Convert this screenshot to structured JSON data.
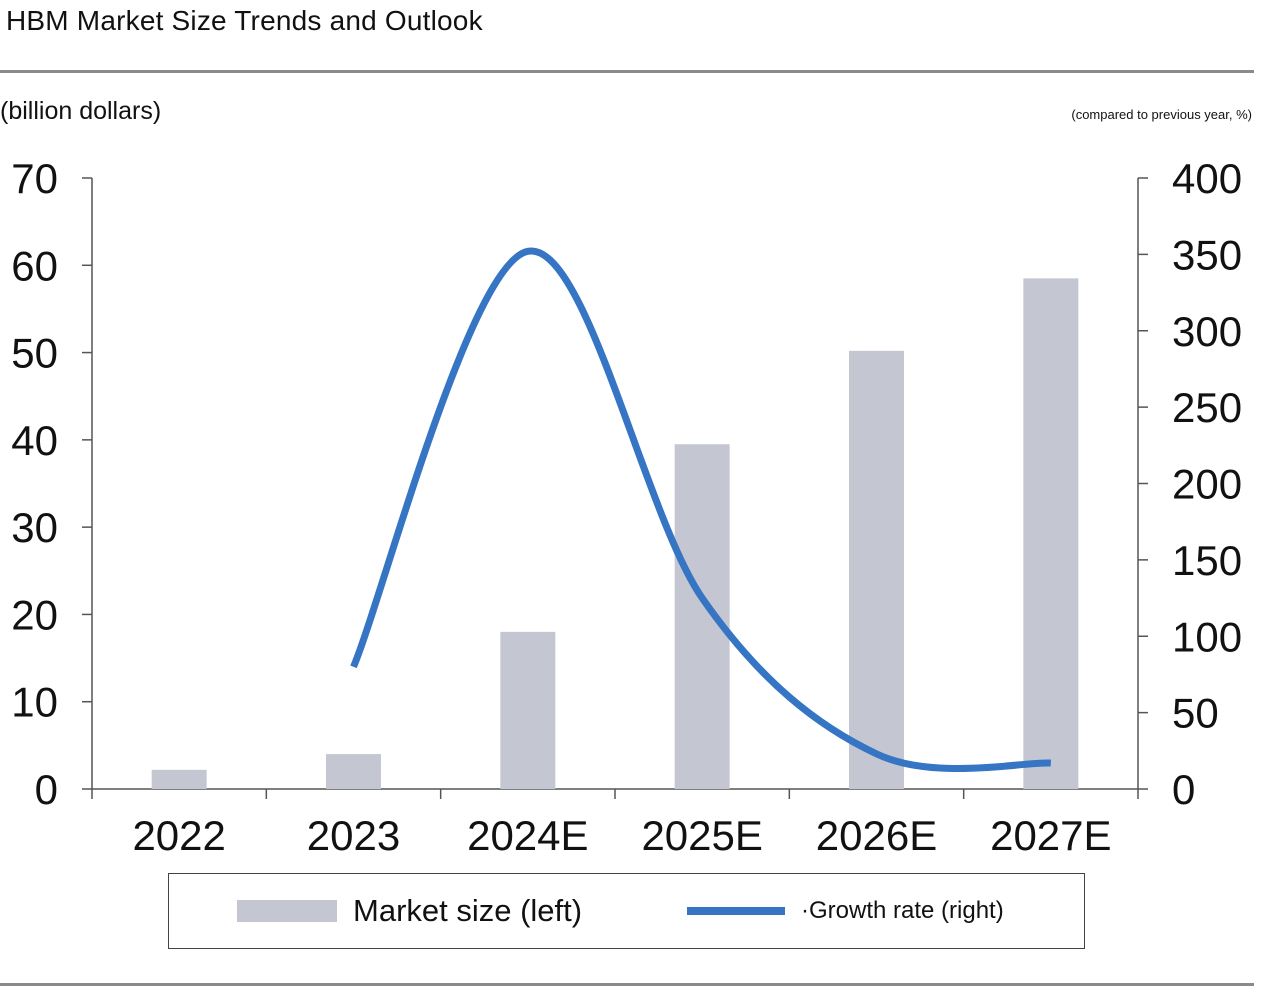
{
  "chart_data": {
    "type": "bar",
    "title": "HBM Market Size Trends and Outlook",
    "left_axis_unit": "(billion dollars)",
    "right_axis_unit": "(compared to previous year, %)",
    "categories": [
      "2022",
      "2023",
      "2024E",
      "2025E",
      "2026E",
      "2027E"
    ],
    "left_axis": {
      "min": 0,
      "max": 70,
      "ticks": [
        "0",
        "10",
        "20",
        "30",
        "40",
        "50",
        "60",
        "70"
      ]
    },
    "right_axis": {
      "min": 0,
      "max": 400,
      "ticks": [
        "0",
        "50",
        "100",
        "150",
        "200",
        "250",
        "300",
        "350",
        "400"
      ]
    },
    "series": [
      {
        "name": "Market size (left)",
        "type": "bar",
        "axis": "left",
        "color": "#c4c7d2",
        "values": [
          2.2,
          4.0,
          18.0,
          39.5,
          50.2,
          58.5
        ]
      },
      {
        "name": "·Growth rate (right)",
        "type": "line",
        "axis": "right",
        "color": "#3575c4",
        "values": [
          null,
          80,
          352,
          125,
          23,
          17
        ]
      }
    ],
    "legend_position": "bottom",
    "grid": false
  }
}
